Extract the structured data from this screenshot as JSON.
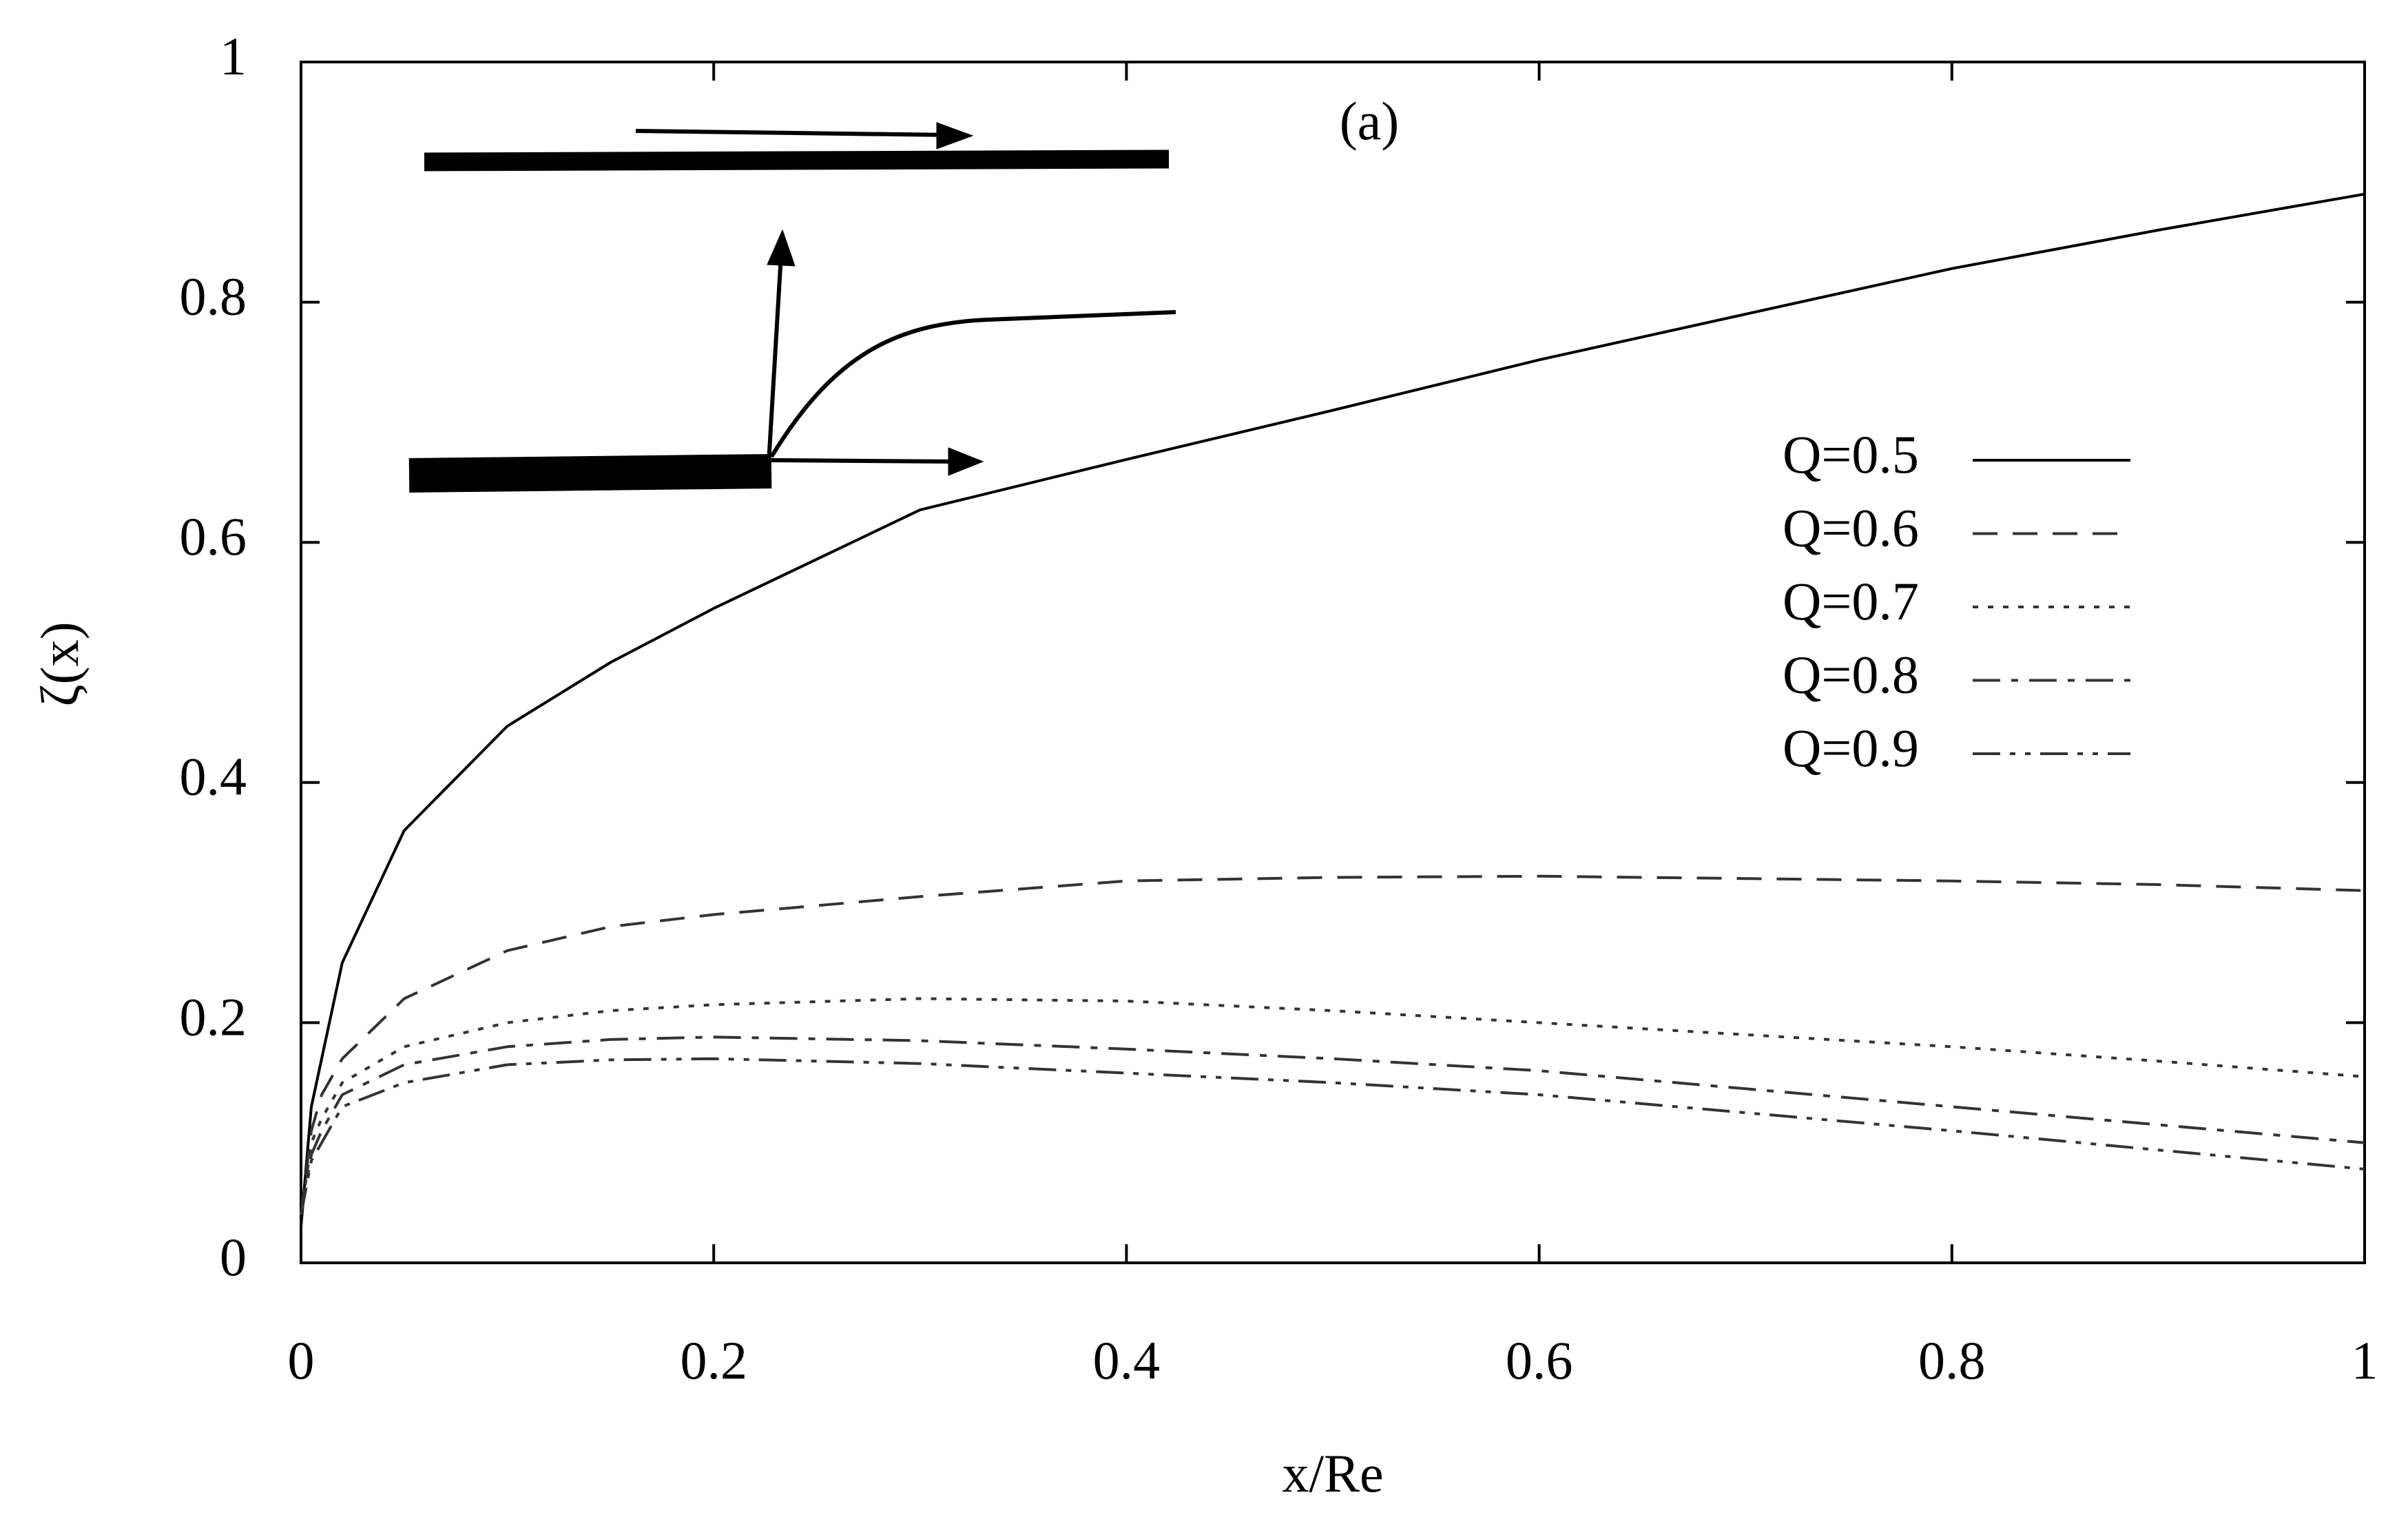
{
  "chart_data": {
    "type": "line",
    "annotation": "(a)",
    "xlabel": "x/Re",
    "ylabel": "ζ(x)",
    "x": [
      0,
      0.005,
      0.01,
      0.02,
      0.05,
      0.1,
      0.15,
      0.2,
      0.3,
      0.4,
      0.5,
      0.6,
      0.7,
      0.8,
      0.9,
      1
    ],
    "series": [
      {
        "name": "Q=0.5",
        "color": "#000000",
        "dash": "solid",
        "values": [
          0.03,
          0.13,
          0.17,
          0.25,
          0.36,
          0.447,
          0.5,
          0.545,
          0.627,
          0.669,
          0.71,
          0.752,
          0.79,
          0.828,
          0.86,
          0.89
        ]
      },
      {
        "name": "Q=0.6",
        "color": "#333333",
        "dash": "dashed",
        "values": [
          0.04,
          0.11,
          0.14,
          0.17,
          0.22,
          0.26,
          0.28,
          0.29,
          0.305,
          0.318,
          0.321,
          0.322,
          0.32,
          0.318,
          0.315,
          0.31
        ]
      },
      {
        "name": "Q=0.7",
        "color": "#333333",
        "dash": "dotted",
        "values": [
          0.04,
          0.1,
          0.12,
          0.15,
          0.18,
          0.2,
          0.21,
          0.215,
          0.22,
          0.218,
          0.21,
          0.2,
          0.19,
          0.18,
          0.168,
          0.155
        ]
      },
      {
        "name": "Q=0.8",
        "color": "#333333",
        "dash": "dashdot",
        "values": [
          0.04,
          0.09,
          0.11,
          0.14,
          0.165,
          0.18,
          0.186,
          0.188,
          0.185,
          0.178,
          0.17,
          0.16,
          0.145,
          0.13,
          0.115,
          0.1
        ]
      },
      {
        "name": "Q=0.9",
        "color": "#333333",
        "dash": "dashdotdot",
        "values": [
          0.04,
          0.085,
          0.1,
          0.13,
          0.15,
          0.165,
          0.169,
          0.17,
          0.166,
          0.158,
          0.15,
          0.14,
          0.125,
          0.11,
          0.094,
          0.078
        ]
      }
    ],
    "xlim": [
      0,
      1
    ],
    "xticks": [
      0,
      0.2,
      0.4,
      0.6,
      0.8,
      1
    ],
    "ylim": [
      0,
      1
    ],
    "yticks": [
      0,
      0.2,
      0.4,
      0.6,
      0.8,
      1
    ]
  }
}
